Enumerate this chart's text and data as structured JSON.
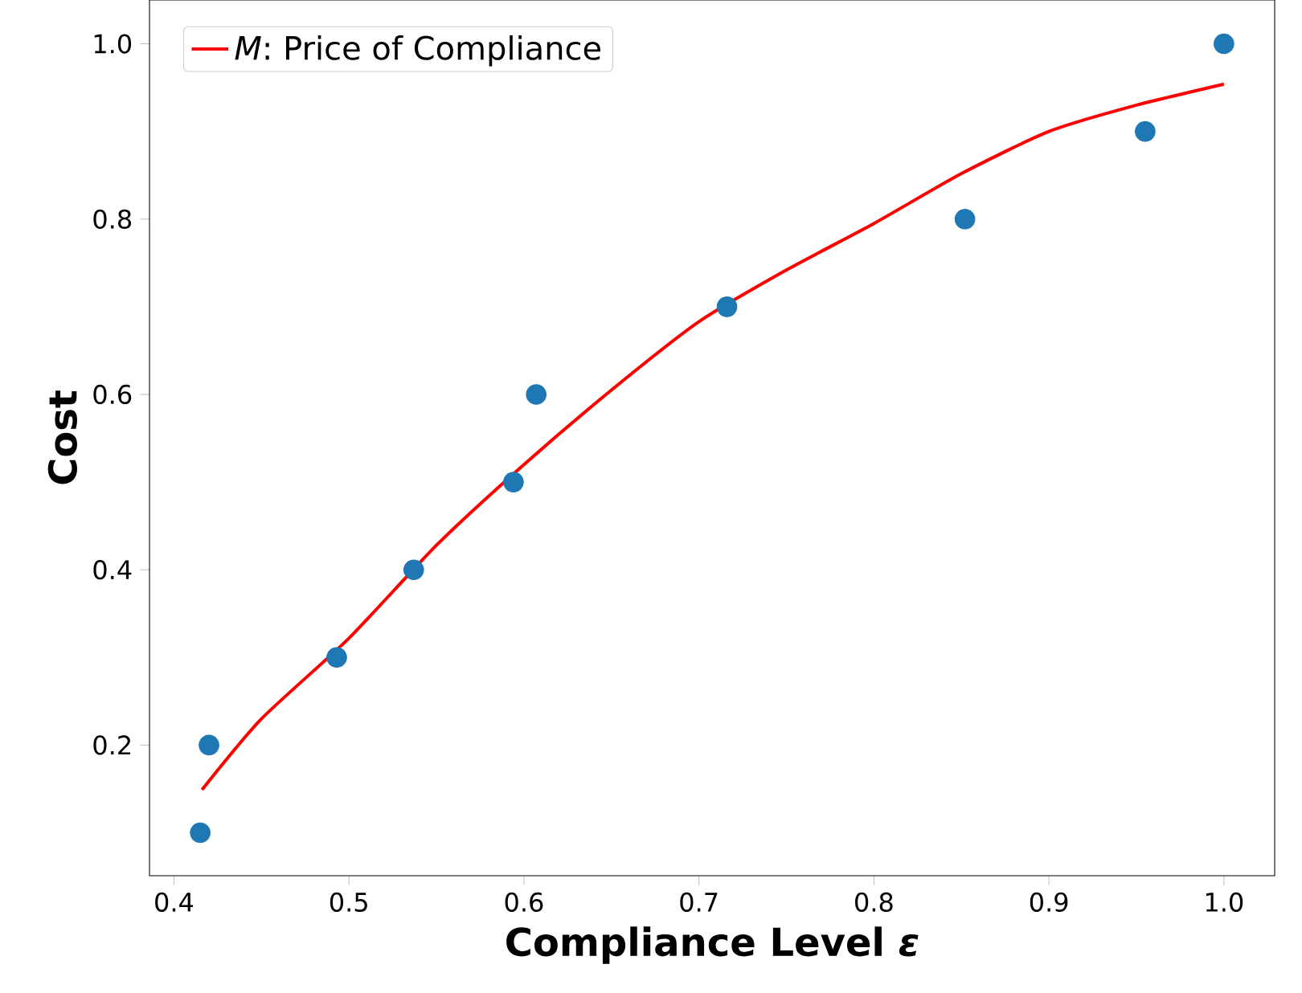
{
  "chart_data": {
    "type": "scatter",
    "xlabel": "Compliance Level *ε*",
    "ylabel": "Cost",
    "xlim": [
      0.386,
      1.029
    ],
    "ylim": [
      0.051,
      1.05
    ],
    "xticks": [
      0.4,
      0.5,
      0.6,
      0.7,
      0.8,
      0.9,
      {
        "value": 1.0,
        "label": "1.0"
      }
    ],
    "yticks": [
      0.2,
      0.4,
      0.6,
      0.8,
      {
        "value": 1.0,
        "label": "1.0"
      }
    ],
    "legend": "top left",
    "series": [
      {
        "marker": "circle",
        "color": "#1f77b4",
        "x": [
          0.415,
          0.42,
          0.493,
          0.537,
          0.594,
          0.607,
          0.716,
          0.852,
          0.955,
          1.0
        ],
        "values": [
          0.1,
          0.2,
          0.3,
          0.4,
          0.5,
          0.6,
          0.7,
          0.8,
          0.9,
          1.0
        ]
      },
      {
        "type": "line",
        "name": "*M*: Price of Compliance",
        "color": "#ff0000",
        "line_style": "solid",
        "marker": "none",
        "x": [
          0.416,
          0.45,
          0.5,
          0.55,
          0.6,
          0.65,
          0.7,
          0.75,
          0.8,
          0.85,
          0.9,
          0.95,
          1.0
        ],
        "values": [
          0.149,
          0.23,
          0.322,
          0.428,
          0.52,
          0.605,
          0.683,
          0.742,
          0.795,
          0.852,
          0.9,
          0.93,
          0.954
        ]
      }
    ]
  }
}
